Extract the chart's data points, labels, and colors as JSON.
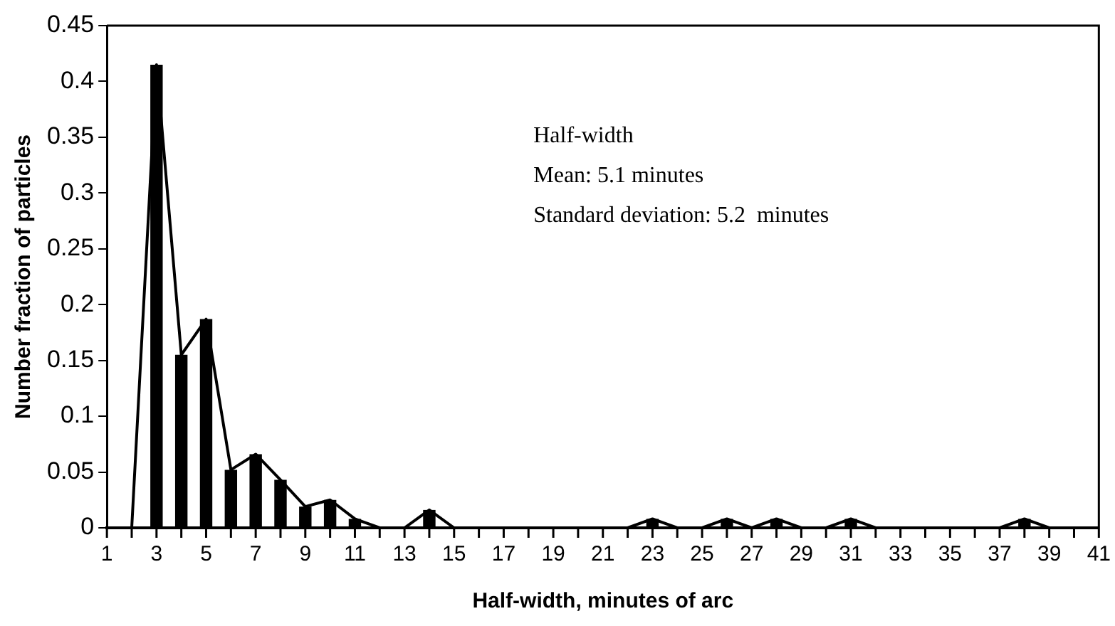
{
  "chart_data": {
    "type": "bar",
    "xlabel": "Half-width, minutes of arc",
    "ylabel": "Number fraction of particles",
    "x": [
      1,
      2,
      3,
      4,
      5,
      6,
      7,
      8,
      9,
      10,
      11,
      12,
      13,
      14,
      15,
      16,
      17,
      18,
      19,
      20,
      21,
      22,
      23,
      24,
      25,
      26,
      27,
      28,
      29,
      30,
      31,
      32,
      33,
      34,
      35,
      36,
      37,
      38,
      39,
      40,
      41
    ],
    "series": [
      {
        "color": "#000000",
        "values": [
          0,
          0,
          0.415,
          0.155,
          0.187,
          0.052,
          0.066,
          0.043,
          0.019,
          0.025,
          0.008,
          0,
          0,
          0.016,
          0,
          0,
          0,
          0,
          0,
          0,
          0,
          0,
          0.008,
          0,
          0,
          0.008,
          0,
          0.008,
          0,
          0,
          0.008,
          0,
          0,
          0,
          0,
          0,
          0,
          0.008,
          0,
          0,
          0
        ]
      },
      {
        "type": "line",
        "color": "#000000",
        "values": [
          0,
          0,
          0.415,
          0.155,
          0.187,
          0.052,
          0.066,
          0.043,
          0.019,
          0.025,
          0.008,
          0,
          0,
          0.016,
          0,
          0,
          0,
          0,
          0,
          0,
          0,
          0,
          0.008,
          0,
          0,
          0.008,
          0,
          0.008,
          0,
          0,
          0.008,
          0,
          0,
          0,
          0,
          0,
          0,
          0.008,
          0,
          0,
          0
        ]
      }
    ],
    "xlim": [
      1,
      41
    ],
    "xticks": [
      1,
      3,
      5,
      7,
      9,
      11,
      13,
      15,
      17,
      19,
      21,
      23,
      25,
      27,
      29,
      31,
      33,
      35,
      37,
      39,
      41
    ],
    "ylim": [
      0,
      0.45
    ],
    "yticks": [
      0,
      0.05,
      0.1,
      0.15,
      0.2,
      0.25,
      0.3,
      0.35,
      0.4,
      0.45
    ],
    "grid": false,
    "legend": false,
    "marker": "none",
    "line_style": "solid",
    "annotations": [
      "Half-width",
      "Mean: 5.1 minutes",
      "Standard deviation: 5.2  minutes"
    ]
  }
}
